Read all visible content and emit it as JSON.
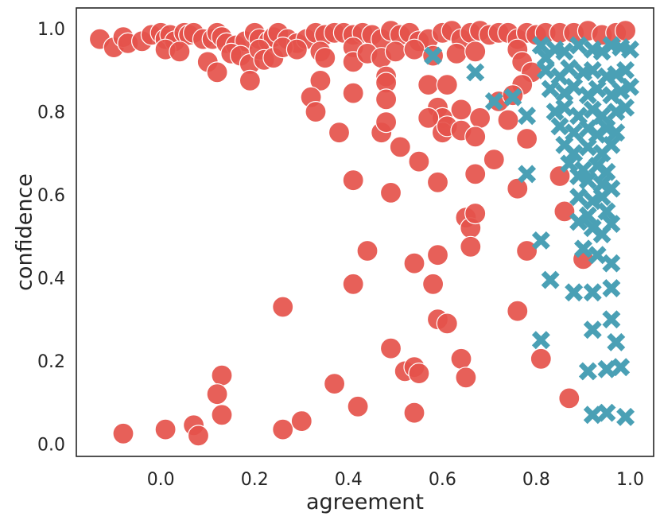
{
  "chart_data": {
    "type": "scatter",
    "title": "",
    "xlabel": "agreement",
    "ylabel": "confidence",
    "xlim": [
      -0.18,
      1.05
    ],
    "ylim": [
      -0.03,
      1.05
    ],
    "xticks": [
      0.0,
      0.2,
      0.4,
      0.6,
      0.8,
      1.0
    ],
    "yticks": [
      0.0,
      0.2,
      0.4,
      0.6,
      0.8,
      1.0
    ],
    "grid": false,
    "legend": "none",
    "colors": {
      "circle": "#e5534b",
      "cross": "#4aa0b5"
    },
    "series": [
      {
        "marker": "circle",
        "points": [
          [
            -0.13,
            0.975
          ],
          [
            -0.1,
            0.955
          ],
          [
            -0.08,
            0.98
          ],
          [
            -0.07,
            0.965
          ],
          [
            -0.04,
            0.97
          ],
          [
            -0.02,
            0.985
          ],
          [
            0.0,
            0.99
          ],
          [
            0.01,
            0.975
          ],
          [
            0.02,
            0.985
          ],
          [
            0.03,
            0.97
          ],
          [
            0.05,
            0.99
          ],
          [
            0.06,
            0.985
          ],
          [
            0.07,
            0.99
          ],
          [
            0.09,
            0.975
          ],
          [
            0.11,
            0.975
          ],
          [
            0.12,
            0.99
          ],
          [
            0.13,
            0.98
          ],
          [
            0.14,
            0.965
          ],
          [
            0.16,
            0.96
          ],
          [
            0.18,
            0.97
          ],
          [
            0.2,
            0.99
          ],
          [
            0.21,
            0.975
          ],
          [
            0.23,
            0.97
          ],
          [
            0.24,
            0.98
          ],
          [
            0.25,
            0.99
          ],
          [
            0.27,
            0.975
          ],
          [
            0.29,
            0.965
          ],
          [
            0.31,
            0.975
          ],
          [
            0.33,
            0.99
          ],
          [
            0.35,
            0.985
          ],
          [
            0.37,
            0.99
          ],
          [
            0.39,
            0.99
          ],
          [
            0.41,
            0.985
          ],
          [
            0.43,
            0.99
          ],
          [
            0.45,
            0.985
          ],
          [
            0.47,
            0.975
          ],
          [
            0.49,
            0.995
          ],
          [
            0.51,
            0.985
          ],
          [
            0.53,
            0.99
          ],
          [
            0.55,
            0.97
          ],
          [
            0.57,
            0.975
          ],
          [
            0.6,
            0.99
          ],
          [
            0.62,
            0.995
          ],
          [
            0.64,
            0.975
          ],
          [
            0.66,
            0.99
          ],
          [
            0.68,
            0.995
          ],
          [
            0.7,
            0.985
          ],
          [
            0.72,
            0.99
          ],
          [
            0.74,
            0.99
          ],
          [
            0.76,
            0.975
          ],
          [
            0.78,
            0.99
          ],
          [
            0.8,
            0.985
          ],
          [
            0.82,
            0.99
          ],
          [
            0.85,
            0.99
          ],
          [
            0.88,
            0.99
          ],
          [
            0.91,
            0.995
          ],
          [
            0.94,
            0.985
          ],
          [
            0.97,
            0.99
          ],
          [
            0.99,
            0.995
          ],
          [
            0.01,
            0.95
          ],
          [
            0.04,
            0.945
          ],
          [
            0.1,
            0.92
          ],
          [
            0.12,
            0.895
          ],
          [
            0.15,
            0.94
          ],
          [
            0.17,
            0.935
          ],
          [
            0.19,
            0.915
          ],
          [
            0.19,
            0.875
          ],
          [
            0.21,
            0.95
          ],
          [
            0.22,
            0.925
          ],
          [
            0.24,
            0.93
          ],
          [
            0.26,
            0.955
          ],
          [
            0.29,
            0.95
          ],
          [
            0.34,
            0.945
          ],
          [
            0.35,
            0.93
          ],
          [
            0.41,
            0.955
          ],
          [
            0.41,
            0.92
          ],
          [
            0.44,
            0.94
          ],
          [
            0.47,
            0.93
          ],
          [
            0.48,
            0.885
          ],
          [
            0.5,
            0.945
          ],
          [
            0.54,
            0.95
          ],
          [
            0.58,
            0.935
          ],
          [
            0.63,
            0.94
          ],
          [
            0.67,
            0.945
          ],
          [
            0.76,
            0.95
          ],
          [
            0.77,
            0.92
          ],
          [
            0.79,
            0.895
          ],
          [
            0.34,
            0.875
          ],
          [
            0.32,
            0.835
          ],
          [
            0.33,
            0.8
          ],
          [
            0.41,
            0.845
          ],
          [
            0.48,
            0.87
          ],
          [
            0.48,
            0.83
          ],
          [
            0.57,
            0.865
          ],
          [
            0.59,
            0.81
          ],
          [
            0.61,
            0.865
          ],
          [
            0.64,
            0.805
          ],
          [
            0.68,
            0.785
          ],
          [
            0.72,
            0.825
          ],
          [
            0.74,
            0.78
          ],
          [
            0.77,
            0.865
          ],
          [
            0.75,
            0.84
          ],
          [
            0.6,
            0.785
          ],
          [
            0.57,
            0.785
          ],
          [
            0.38,
            0.75
          ],
          [
            0.47,
            0.75
          ],
          [
            0.48,
            0.775
          ],
          [
            0.51,
            0.715
          ],
          [
            0.55,
            0.68
          ],
          [
            0.6,
            0.75
          ],
          [
            0.61,
            0.765
          ],
          [
            0.64,
            0.755
          ],
          [
            0.67,
            0.74
          ],
          [
            0.71,
            0.685
          ],
          [
            0.78,
            0.735
          ],
          [
            0.41,
            0.635
          ],
          [
            0.49,
            0.605
          ],
          [
            0.59,
            0.63
          ],
          [
            0.67,
            0.65
          ],
          [
            0.76,
            0.615
          ],
          [
            0.85,
            0.645
          ],
          [
            0.65,
            0.545
          ],
          [
            0.66,
            0.52
          ],
          [
            0.67,
            0.555
          ],
          [
            0.66,
            0.475
          ],
          [
            0.44,
            0.465
          ],
          [
            0.54,
            0.435
          ],
          [
            0.59,
            0.455
          ],
          [
            0.78,
            0.465
          ],
          [
            0.86,
            0.56
          ],
          [
            0.9,
            0.445
          ],
          [
            0.41,
            0.385
          ],
          [
            0.58,
            0.385
          ],
          [
            0.26,
            0.33
          ],
          [
            0.59,
            0.3
          ],
          [
            0.61,
            0.29
          ],
          [
            0.76,
            0.32
          ],
          [
            0.49,
            0.23
          ],
          [
            0.64,
            0.205
          ],
          [
            0.81,
            0.205
          ],
          [
            0.13,
            0.165
          ],
          [
            0.12,
            0.12
          ],
          [
            0.37,
            0.145
          ],
          [
            0.52,
            0.175
          ],
          [
            0.54,
            0.185
          ],
          [
            0.55,
            0.17
          ],
          [
            0.65,
            0.16
          ],
          [
            0.87,
            0.11
          ],
          [
            -0.08,
            0.025
          ],
          [
            0.01,
            0.035
          ],
          [
            0.07,
            0.045
          ],
          [
            0.08,
            0.02
          ],
          [
            0.13,
            0.07
          ],
          [
            0.26,
            0.035
          ],
          [
            0.3,
            0.055
          ],
          [
            0.42,
            0.09
          ],
          [
            0.54,
            0.075
          ]
        ]
      },
      {
        "marker": "cross",
        "points": [
          [
            0.58,
            0.935
          ],
          [
            0.67,
            0.895
          ],
          [
            0.71,
            0.825
          ],
          [
            0.75,
            0.835
          ],
          [
            0.78,
            0.79
          ],
          [
            0.78,
            0.65
          ],
          [
            0.81,
            0.49
          ],
          [
            0.81,
            0.25
          ],
          [
            0.83,
            0.395
          ],
          [
            0.81,
            0.96
          ],
          [
            0.82,
            0.93
          ],
          [
            0.84,
            0.95
          ],
          [
            0.86,
            0.945
          ],
          [
            0.89,
            0.96
          ],
          [
            0.92,
            0.95
          ],
          [
            0.94,
            0.945
          ],
          [
            0.96,
            0.96
          ],
          [
            0.98,
            0.955
          ],
          [
            1.0,
            0.95
          ],
          [
            0.82,
            0.9
          ],
          [
            0.85,
            0.885
          ],
          [
            0.87,
            0.905
          ],
          [
            0.9,
            0.895
          ],
          [
            0.92,
            0.9
          ],
          [
            0.95,
            0.885
          ],
          [
            0.97,
            0.89
          ],
          [
            0.99,
            0.9
          ],
          [
            0.83,
            0.855
          ],
          [
            0.86,
            0.845
          ],
          [
            0.88,
            0.86
          ],
          [
            0.91,
            0.84
          ],
          [
            0.93,
            0.855
          ],
          [
            0.96,
            0.84
          ],
          [
            0.98,
            0.85
          ],
          [
            1.0,
            0.86
          ],
          [
            0.84,
            0.8
          ],
          [
            0.86,
            0.81
          ],
          [
            0.89,
            0.79
          ],
          [
            0.92,
            0.805
          ],
          [
            0.94,
            0.79
          ],
          [
            0.97,
            0.8
          ],
          [
            0.99,
            0.81
          ],
          [
            0.85,
            0.765
          ],
          [
            0.88,
            0.75
          ],
          [
            0.91,
            0.76
          ],
          [
            0.93,
            0.745
          ],
          [
            0.95,
            0.76
          ],
          [
            0.97,
            0.75
          ],
          [
            0.86,
            0.72
          ],
          [
            0.88,
            0.7
          ],
          [
            0.91,
            0.715
          ],
          [
            0.94,
            0.7
          ],
          [
            0.96,
            0.72
          ],
          [
            0.87,
            0.675
          ],
          [
            0.9,
            0.66
          ],
          [
            0.93,
            0.67
          ],
          [
            0.95,
            0.655
          ],
          [
            0.89,
            0.645
          ],
          [
            0.91,
            0.635
          ],
          [
            0.94,
            0.625
          ],
          [
            0.96,
            0.615
          ],
          [
            0.89,
            0.595
          ],
          [
            0.92,
            0.585
          ],
          [
            0.94,
            0.595
          ],
          [
            0.95,
            0.56
          ],
          [
            0.91,
            0.55
          ],
          [
            0.89,
            0.535
          ],
          [
            0.92,
            0.52
          ],
          [
            0.94,
            0.505
          ],
          [
            0.96,
            0.53
          ],
          [
            0.9,
            0.47
          ],
          [
            0.93,
            0.455
          ],
          [
            0.96,
            0.435
          ],
          [
            0.88,
            0.365
          ],
          [
            0.92,
            0.365
          ],
          [
            0.96,
            0.375
          ],
          [
            0.92,
            0.275
          ],
          [
            0.96,
            0.3
          ],
          [
            0.97,
            0.245
          ],
          [
            0.91,
            0.175
          ],
          [
            0.95,
            0.18
          ],
          [
            0.98,
            0.185
          ],
          [
            0.92,
            0.07
          ],
          [
            0.95,
            0.075
          ],
          [
            0.99,
            0.065
          ]
        ]
      }
    ]
  }
}
